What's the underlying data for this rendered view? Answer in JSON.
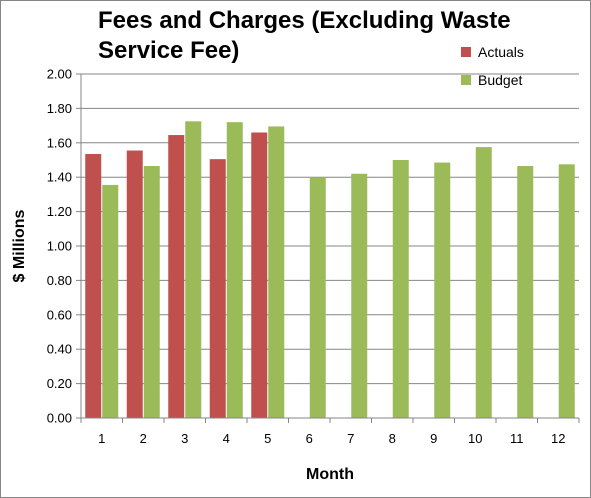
{
  "chart_data": {
    "type": "bar",
    "title": "Fees and Charges (Excluding Waste Service Fee)",
    "xlabel": "Month",
    "ylabel": "$ Millions",
    "categories": [
      "1",
      "2",
      "3",
      "4",
      "5",
      "6",
      "7",
      "8",
      "9",
      "10",
      "11",
      "12"
    ],
    "series": [
      {
        "name": "Actuals",
        "color": "#C0504D",
        "values": [
          1.535,
          1.555,
          1.645,
          1.505,
          1.66,
          null,
          null,
          null,
          null,
          null,
          null,
          null
        ]
      },
      {
        "name": "Budget",
        "color": "#9BBB59",
        "values": [
          1.355,
          1.465,
          1.725,
          1.72,
          1.695,
          1.4,
          1.42,
          1.5,
          1.485,
          1.575,
          1.465,
          1.475
        ]
      }
    ],
    "ylim": [
      0,
      2.0
    ],
    "yticks": [
      "0.00",
      "0.20",
      "0.40",
      "0.60",
      "0.80",
      "1.00",
      "1.20",
      "1.40",
      "1.60",
      "1.80",
      "2.00"
    ],
    "grid": true,
    "legend_position": "top-right"
  }
}
